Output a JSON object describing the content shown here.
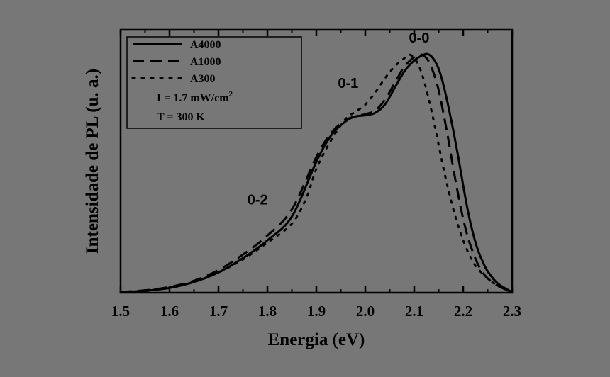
{
  "chart_data": {
    "type": "line",
    "xlabel": "Energia (eV)",
    "ylabel": "Intensidade de PL (u. a.)",
    "xlim": [
      1.5,
      2.3
    ],
    "ylim": [
      0,
      1.0
    ],
    "x_ticks": [
      "1.5",
      "1.6",
      "1.7",
      "1.8",
      "1.9",
      "2.0",
      "2.1",
      "2.2",
      "2.3"
    ],
    "grid": false,
    "legend_position": "top-left",
    "annotations": [
      {
        "text": "0-0",
        "x": 2.11,
        "y": 1.05
      },
      {
        "text": "0-1",
        "x": 1.965,
        "y": 0.86
      },
      {
        "text": "0-2",
        "x": 1.78,
        "y": 0.37
      }
    ],
    "conditions": [
      "I = 1.7 mW/cm",
      "T = 300 K"
    ],
    "conditions_sup": "2",
    "series": [
      {
        "name": "A4000",
        "style": "solid",
        "x": [
          1.5,
          1.55,
          1.6,
          1.65,
          1.7,
          1.75,
          1.8,
          1.85,
          1.9,
          1.93,
          1.96,
          1.98,
          2.0,
          2.02,
          2.04,
          2.06,
          2.08,
          2.1,
          2.12,
          2.13,
          2.14,
          2.15,
          2.16,
          2.17,
          2.18,
          2.19,
          2.2,
          2.21,
          2.22,
          2.23,
          2.24,
          2.25,
          2.27,
          2.3
        ],
        "y": [
          0.002,
          0.008,
          0.02,
          0.045,
          0.085,
          0.145,
          0.22,
          0.32,
          0.55,
          0.66,
          0.72,
          0.74,
          0.745,
          0.755,
          0.79,
          0.86,
          0.93,
          0.975,
          1.0,
          1.0,
          0.98,
          0.94,
          0.87,
          0.78,
          0.68,
          0.57,
          0.45,
          0.34,
          0.25,
          0.18,
          0.13,
          0.09,
          0.04,
          0.002
        ]
      },
      {
        "name": "A1000",
        "style": "dashed",
        "x": [
          1.5,
          1.55,
          1.6,
          1.65,
          1.7,
          1.75,
          1.8,
          1.85,
          1.9,
          1.93,
          1.96,
          1.98,
          2.0,
          2.02,
          2.04,
          2.06,
          2.08,
          2.1,
          2.11,
          2.12,
          2.13,
          2.14,
          2.15,
          2.16,
          2.17,
          2.18,
          2.19,
          2.2,
          2.21,
          2.22,
          2.23,
          2.24,
          2.25,
          2.27,
          2.3
        ],
        "y": [
          0.003,
          0.01,
          0.024,
          0.05,
          0.095,
          0.16,
          0.24,
          0.35,
          0.57,
          0.67,
          0.725,
          0.74,
          0.75,
          0.765,
          0.81,
          0.88,
          0.95,
          0.99,
          1.0,
          0.995,
          0.97,
          0.92,
          0.85,
          0.75,
          0.64,
          0.52,
          0.41,
          0.31,
          0.23,
          0.17,
          0.12,
          0.085,
          0.06,
          0.03,
          0.002
        ]
      },
      {
        "name": "A300",
        "style": "dotted",
        "x": [
          1.5,
          1.55,
          1.6,
          1.65,
          1.7,
          1.75,
          1.8,
          1.85,
          1.88,
          1.9,
          1.93,
          1.96,
          1.98,
          2.0,
          2.02,
          2.04,
          2.06,
          2.08,
          2.09,
          2.1,
          2.11,
          2.12,
          2.13,
          2.14,
          2.15,
          2.16,
          2.17,
          2.18,
          2.19,
          2.2,
          2.21,
          2.22,
          2.23,
          2.25,
          2.27,
          2.3
        ],
        "y": [
          0.002,
          0.009,
          0.022,
          0.045,
          0.085,
          0.14,
          0.21,
          0.29,
          0.4,
          0.52,
          0.64,
          0.73,
          0.76,
          0.79,
          0.84,
          0.9,
          0.95,
          0.985,
          1.0,
          0.985,
          0.95,
          0.89,
          0.81,
          0.72,
          0.62,
          0.52,
          0.43,
          0.35,
          0.28,
          0.22,
          0.17,
          0.13,
          0.1,
          0.06,
          0.03,
          0.002
        ]
      }
    ]
  }
}
